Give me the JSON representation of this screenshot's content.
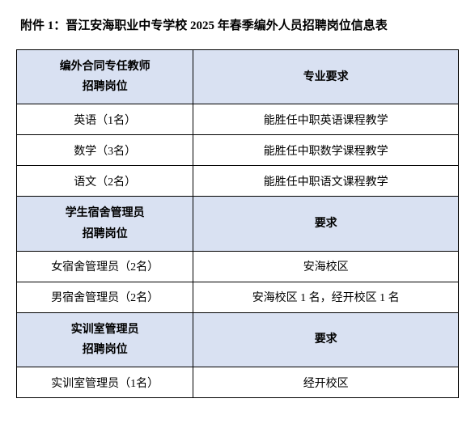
{
  "title": "附件 1：晋江安海职业中专学校 2025 年春季编外人员招聘岗位信息表",
  "table": {
    "background_color": "#ffffff",
    "header_background": "#d9e1f2",
    "border_color": "#000000",
    "text_color": "#000000",
    "font_size": 14,
    "title_font_size": 15,
    "sections": [
      {
        "header_left_line1": "编外合同专任教师",
        "header_left_line2": "招聘岗位",
        "header_right": "专业要求",
        "rows": [
          {
            "position": "英语（1名）",
            "requirement": "能胜任中职英语课程教学"
          },
          {
            "position": "数学（3名）",
            "requirement": "能胜任中职数学课程教学"
          },
          {
            "position": "语文（2名）",
            "requirement": "能胜任中职语文课程教学"
          }
        ]
      },
      {
        "header_left_line1": "学生宿舍管理员",
        "header_left_line2": "招聘岗位",
        "header_right": "要求",
        "rows": [
          {
            "position": "女宿舍管理员（2名）",
            "requirement": "安海校区"
          },
          {
            "position": "男宿舍管理员（2名）",
            "requirement": "安海校区 1 名，经开校区 1 名"
          }
        ]
      },
      {
        "header_left_line1": "实训室管理员",
        "header_left_line2": "招聘岗位",
        "header_right": "要求",
        "rows": [
          {
            "position": "实训室管理员（1名）",
            "requirement": "经开校区"
          }
        ]
      }
    ]
  }
}
